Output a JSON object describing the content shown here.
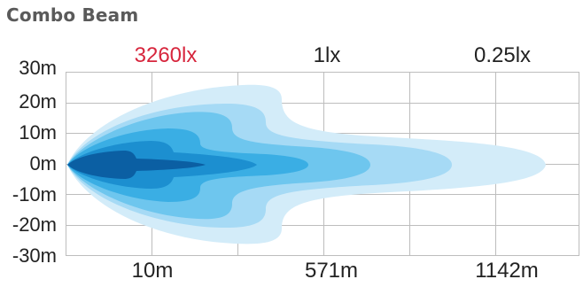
{
  "title": "Combo Beam",
  "lux_labels": [
    {
      "text": "3260lx",
      "highlight": true
    },
    {
      "text": "1lx",
      "highlight": false
    },
    {
      "text": "0.25lx",
      "highlight": false
    }
  ],
  "y_axis": {
    "ticks": [
      "30m",
      "20m",
      "10m",
      "0m",
      "-10m",
      "-20m",
      "-30m"
    ],
    "range": [
      -30,
      30
    ],
    "unit": "m"
  },
  "x_axis": {
    "ticks": [
      "10m",
      "571m",
      "1142m"
    ]
  },
  "colors": {
    "highlight": "#d7263d",
    "grid": "#bdbdbd",
    "zone_1": "#d3ecf9",
    "zone_2": "#a6daf5",
    "zone_3": "#6ec6ee",
    "zone_4": "#3aaee4",
    "zone_5": "#1c8fd0",
    "zone_6": "#0b5fa3"
  }
}
